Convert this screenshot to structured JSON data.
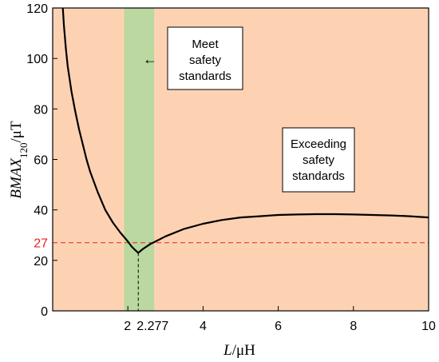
{
  "chart_data": {
    "type": "line",
    "xlabel": {
      "var": "L",
      "unit": "/μH"
    },
    "ylabel": {
      "var": "BMAX",
      "sub": "120",
      "unit": "/μT"
    },
    "xlim": [
      0,
      10
    ],
    "ylim": [
      0,
      120
    ],
    "x_ticks": [
      2,
      4,
      6,
      8,
      10
    ],
    "x_tick_labels": [
      "2",
      "4",
      "6",
      "8",
      "10"
    ],
    "extra_x_tick": {
      "value": 2.277,
      "label": "2.277"
    },
    "y_ticks": [
      0,
      20,
      40,
      60,
      80,
      100,
      120
    ],
    "y_tick_labels": [
      "0",
      "20",
      "40",
      "60",
      "80",
      "100",
      "120"
    ],
    "grid": false,
    "threshold": {
      "value": 27,
      "label": "27",
      "color": "#e8221f"
    },
    "regions": [
      {
        "name": "exceeding",
        "x": [
          0,
          10
        ],
        "color": "#fdd2b3"
      },
      {
        "name": "meet",
        "x": [
          1.9,
          2.7
        ],
        "color": "#bad89f"
      }
    ],
    "series": [
      {
        "color": "#000000",
        "points": [
          [
            0.27,
            120
          ],
          [
            0.3,
            113
          ],
          [
            0.35,
            104
          ],
          [
            0.4,
            97
          ],
          [
            0.5,
            87
          ],
          [
            0.6,
            79
          ],
          [
            0.7,
            72
          ],
          [
            0.8,
            66
          ],
          [
            0.9,
            60
          ],
          [
            1.0,
            55
          ],
          [
            1.2,
            47
          ],
          [
            1.4,
            40
          ],
          [
            1.6,
            35
          ],
          [
            1.8,
            31
          ],
          [
            2.0,
            27.5
          ],
          [
            2.1,
            25.5
          ],
          [
            2.2,
            24
          ],
          [
            2.277,
            23
          ],
          [
            2.4,
            24.5
          ],
          [
            2.6,
            26.5
          ],
          [
            2.8,
            28
          ],
          [
            3.0,
            29.5
          ],
          [
            3.5,
            32.5
          ],
          [
            4.0,
            34.5
          ],
          [
            4.5,
            36
          ],
          [
            5.0,
            37
          ],
          [
            5.5,
            37.5
          ],
          [
            6.0,
            38
          ],
          [
            6.5,
            38.2
          ],
          [
            7.0,
            38.3
          ],
          [
            7.5,
            38.3
          ],
          [
            8.0,
            38.2
          ],
          [
            8.5,
            38
          ],
          [
            9.0,
            37.8
          ],
          [
            9.5,
            37.5
          ],
          [
            10.0,
            37
          ]
        ]
      }
    ],
    "annotations": [
      {
        "name": "meet",
        "lines": [
          "Meet",
          "safety",
          "standards"
        ],
        "arrow": "←"
      },
      {
        "name": "exceeding",
        "lines": [
          "Exceeding",
          "safety",
          "standards"
        ]
      }
    ]
  }
}
